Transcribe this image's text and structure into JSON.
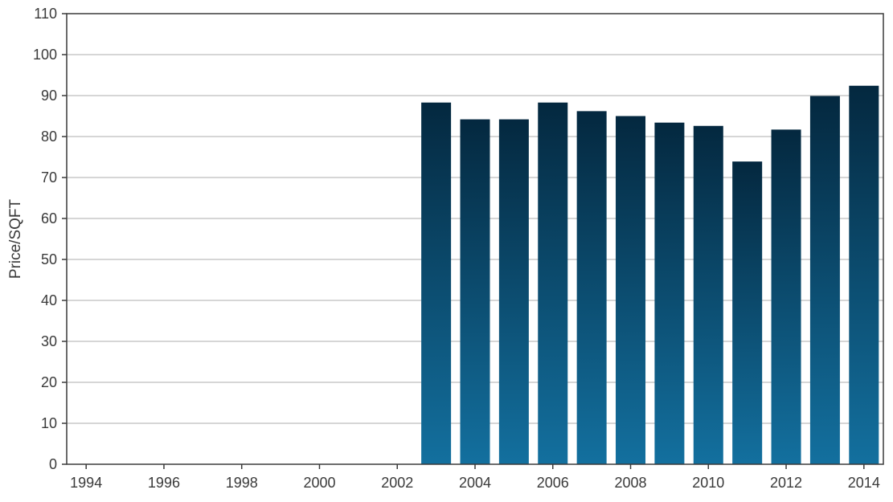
{
  "chart_data": {
    "type": "bar",
    "title": "",
    "xlabel": "",
    "ylabel": "Price/SQFT",
    "ylim": [
      0,
      110
    ],
    "xlim": [
      1993.5,
      2014.5
    ],
    "grid": "horizontal",
    "legend": "none",
    "yticks": [
      0,
      10,
      20,
      30,
      40,
      50,
      60,
      70,
      80,
      90,
      100,
      110
    ],
    "xticks": [
      1994,
      1996,
      1998,
      2000,
      2002,
      2004,
      2006,
      2008,
      2010,
      2012,
      2014
    ],
    "categories": [
      2003,
      2004,
      2005,
      2006,
      2007,
      2008,
      2009,
      2010,
      2011,
      2012,
      2013,
      2014
    ],
    "values": [
      88.3,
      84.2,
      84.2,
      88.3,
      86.2,
      85.0,
      83.4,
      82.6,
      73.9,
      81.7,
      89.9,
      92.4
    ],
    "colors": {
      "bar_top": "#04283f",
      "bar_bottom": "#13709f",
      "grid": "#c8c8c8",
      "axis": "#3a3a3a"
    }
  }
}
